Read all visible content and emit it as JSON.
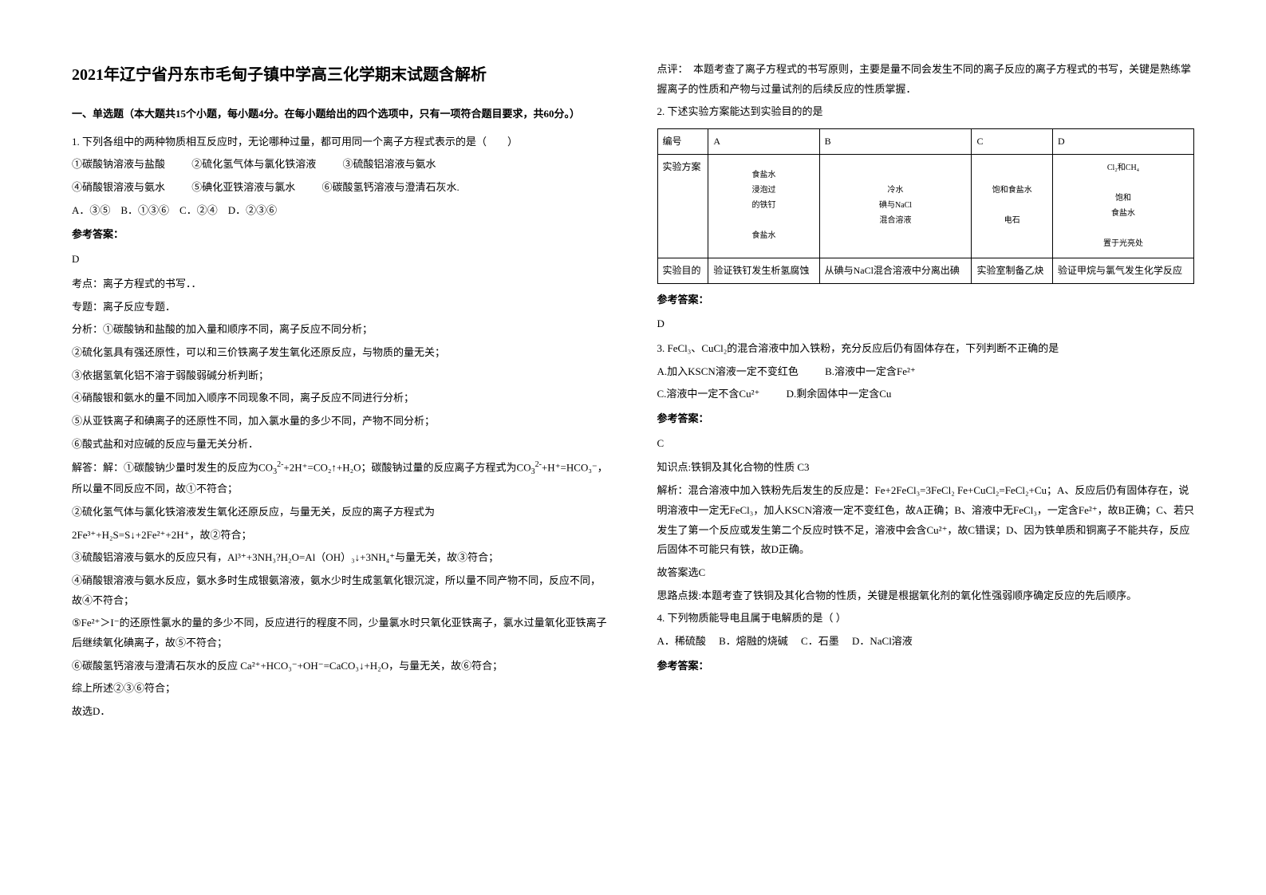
{
  "title": "2021年辽宁省丹东市毛甸子镇中学高三化学期末试题含解析",
  "sectionHeader": "一、单选题（本大题共15个小题，每小题4分。在每小题给出的四个选项中，只有一项符合题目要求，共60分。）",
  "q1": {
    "stem": "1. 下列各组中的两种物质相互反应时，无论哪种过量，都可用同一个离子方程式表示的是（　　）",
    "items": {
      "i1": "①碳酸钠溶液与盐酸",
      "i2": "②硫化氢气体与氯化铁溶液",
      "i3": "③硫酸铝溶液与氨水",
      "i4": "④硝酸银溶液与氨水",
      "i5": "⑤碘化亚铁溶液与氯水",
      "i6": "⑥碳酸氢钙溶液与澄清石灰水."
    },
    "options": "A．③⑤　B．①③⑥　C．②④　D．②③⑥",
    "answerLabel": "参考答案：",
    "answer": "D",
    "kaodian": "考点：离子方程式的书写．．",
    "zhuanti": "专题：离子反应专题．",
    "fenxiHeader": "分析：①碳酸钠和盐酸的加入量和顺序不同，离子反应不同分析；",
    "fenxi2": "②硫化氢具有强还原性，可以和三价铁离子发生氧化还原反应，与物质的量无关；",
    "fenxi3": "③依据氢氧化铝不溶于弱酸弱碱分析判断；",
    "fenxi4": "④硝酸银和氨水的量不同加入顺序不同现象不同，离子反应不同进行分析；",
    "fenxi5": "⑤从亚铁离子和碘离子的还原性不同，加入氯水量的多少不同，产物不同分析；",
    "fenxi6": "⑥酸式盐和对应碱的反应与量无关分析．",
    "jieda1a": "解答：解：①碳酸钠少量时发生的反应为CO",
    "jieda1b": "+2H⁺=CO₂↑+H₂O；碳酸钠过量的反应离子方程式为CO",
    "jieda1c": "+H⁺=HCO₃⁻，所以量不同反应不同，故①不符合；",
    "jieda2a": "②硫化氢气体与氯化铁溶液发生氧化还原反应，与量无关，反应的离子方程式为",
    "jieda2b": "2Fe³⁺+H₂S=S↓+2Fe²⁺+2H⁺，故②符合；",
    "jieda3": "③硫酸铝溶液与氨水的反应只有，Al³⁺+3NH₃?H₂O=Al（OH）₃↓+3NH₄⁺与量无关，故③符合；",
    "jieda4": "④硝酸银溶液与氨水反应，氨水多时生成银氨溶液，氨水少时生成氢氧化银沉淀，所以量不同产物不同，反应不同，故④不符合；",
    "jieda5": "⑤Fe²⁺＞I⁻的还原性氯水的量的多少不同，反应进行的程度不同，少量氯水时只氧化亚铁离子，氯水过量氧化亚铁离子后继续氧化碘离子，故⑤不符合；",
    "jieda6": "⑥碳酸氢钙溶液与澄清石灰水的反应 Ca²⁺+HCO₃⁻+OH⁻=CaCO₃↓+H₂O，与量无关，故⑥符合；",
    "jieda7": "综上所述②③⑥符合；",
    "jieda8": "故选D．"
  },
  "rightCol": {
    "dianping": "点评：　本题考查了离子方程式的书写原则，主要是量不同会发生不同的离子反应的离子方程式的书写，关键是熟练掌握离子的性质和产物与过量试剂的后续反应的性质掌握．",
    "q2stem": "2. 下述实验方案能达到实验目的的是",
    "tableHeader": {
      "c0": "编号",
      "c1": "A",
      "c2": "B",
      "c3": "C",
      "c4": "D"
    },
    "tableRow1Label": "实验方案",
    "diagrams": {
      "a": "食盐水\n浸泡过\n的铁钉\n\n食盐水",
      "b": "冷水\n碘与NaCl\n混合溶液",
      "c": "饱和食盐水\n\n电石",
      "d": "Cl₂和CH₄\n\n饱和\n食盐水\n\n置于光亮处"
    },
    "tableRow2Label": "实验目的",
    "tableRow2": {
      "a": "验证铁钉发生析氢腐蚀",
      "b": "从碘与NaCl混合溶液中分离出碘",
      "c": "实验室制备乙炔",
      "d": "验证甲烷与氯气发生化学反应"
    },
    "q2answerLabel": "参考答案：",
    "q2answer": "D",
    "q3stem": "3. FeCl₃、CuCl₂的混合溶液中加入铁粉，充分反应后仍有固体存在，下列判断不正确的是",
    "q3a": "A.加入KSCN溶液一定不变红色",
    "q3b": "B.溶液中一定含Fe²⁺",
    "q3c": "C.溶液中一定不含Cu²⁺",
    "q3d": "D.剩余固体中一定含Cu",
    "q3answerLabel": "参考答案：",
    "q3answer": "C",
    "q3zhishi": "知识点:铁铜及其化合物的性质 C3",
    "q3jiexi": "解析：混合溶液中加入铁粉先后发生的反应是：Fe+2FeCl₃=3FeCl₂ Fe+CuCl₂=FeCl₂+Cu；A、反应后仍有固体存在，说明溶液中一定无FeCl₃，加人KSCN溶液一定不变红色，故A正确；B、溶液中无FeCl₃，一定含Fe²⁺，故B正确；C、若只发生了第一个反应或发生第二个反应时铁不足，溶液中会含Cu²⁺，故C错误；D、因为铁单质和铜离子不能共存，反应后固体不可能只有铁，故D正确。",
    "q3gudaan": "故答案选C",
    "q3silu": "思路点拨:本题考查了铁铜及其化合物的性质，关键是根据氧化剂的氧化性强弱顺序确定反应的先后顺序。",
    "q4stem": "4. 下列物质能导电且属于电解质的是（ ）",
    "q4options": "A．稀硫酸　 B．熔融的烧碱　 C．石墨　 D．NaCl溶液",
    "q4answerLabel": "参考答案："
  }
}
